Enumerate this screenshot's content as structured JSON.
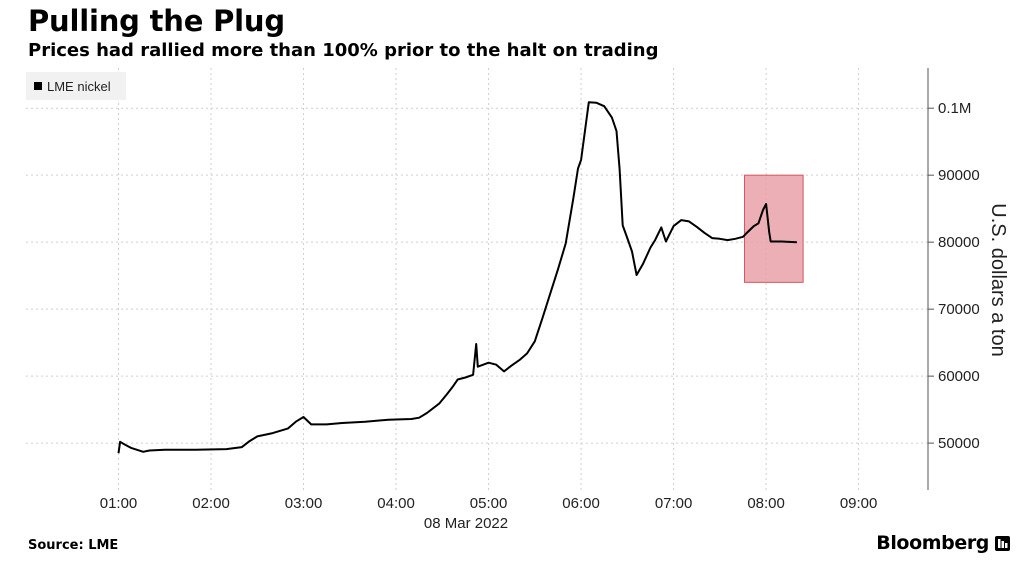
{
  "header": {
    "title": "Pulling the Plug",
    "subtitle": "Prices had rallied more than 100% prior to the halt on trading"
  },
  "footer": {
    "source": "Source: LME",
    "brand": "Bloomberg"
  },
  "icons": {
    "brand_icon": "bloomberg-terminal-icon"
  },
  "colors": {
    "line": "#000000",
    "grid": "#cfcfcf",
    "highlight": "#e8a1a8",
    "highlight_border": "#d9535f",
    "legend_bg": "#f1f1f1"
  },
  "chart_data": {
    "type": "line",
    "xlabel": "08 Mar 2022",
    "ylabel": "U.S. dollars a ton",
    "x_ticks": [
      "01:00",
      "02:00",
      "03:00",
      "04:00",
      "05:00",
      "06:00",
      "07:00",
      "08:00",
      "09:00"
    ],
    "y_ticks": [
      {
        "value": 50000,
        "label": "50000"
      },
      {
        "value": 60000,
        "label": "60000"
      },
      {
        "value": 70000,
        "label": "70000"
      },
      {
        "value": 80000,
        "label": "80000"
      },
      {
        "value": 90000,
        "label": "90000"
      },
      {
        "value": 100000,
        "label": "0.1M"
      }
    ],
    "xlim": [
      "00:00",
      "09:45"
    ],
    "ylim": [
      43000,
      106000
    ],
    "y_axis_side": "right",
    "grid": true,
    "legend_position": "top-left",
    "series": [
      {
        "name": "LME nickel",
        "points": [
          [
            "01:00",
            48500
          ],
          [
            "01:01",
            50200
          ],
          [
            "01:04",
            49800
          ],
          [
            "01:08",
            49300
          ],
          [
            "01:12",
            49000
          ],
          [
            "01:16",
            48700
          ],
          [
            "01:20",
            48900
          ],
          [
            "01:30",
            49000
          ],
          [
            "01:50",
            49000
          ],
          [
            "02:10",
            49100
          ],
          [
            "02:20",
            49400
          ],
          [
            "02:25",
            50300
          ],
          [
            "02:30",
            51000
          ],
          [
            "02:40",
            51500
          ],
          [
            "02:50",
            52200
          ],
          [
            "02:55",
            53200
          ],
          [
            "03:00",
            53900
          ],
          [
            "03:05",
            52800
          ],
          [
            "03:15",
            52800
          ],
          [
            "03:25",
            53000
          ],
          [
            "03:40",
            53200
          ],
          [
            "03:55",
            53500
          ],
          [
            "04:10",
            53600
          ],
          [
            "04:15",
            53800
          ],
          [
            "04:20",
            54500
          ],
          [
            "04:28",
            55900
          ],
          [
            "04:33",
            57300
          ],
          [
            "04:37",
            58500
          ],
          [
            "04:40",
            59500
          ],
          [
            "04:45",
            59800
          ],
          [
            "04:50",
            60200
          ],
          [
            "04:52",
            64800
          ],
          [
            "04:53",
            61400
          ],
          [
            "05:00",
            62000
          ],
          [
            "05:05",
            61700
          ],
          [
            "05:10",
            60700
          ],
          [
            "05:15",
            61600
          ],
          [
            "05:20",
            62400
          ],
          [
            "05:25",
            63400
          ],
          [
            "05:30",
            65200
          ],
          [
            "05:35",
            68700
          ],
          [
            "05:40",
            72300
          ],
          [
            "05:45",
            75900
          ],
          [
            "05:50",
            79800
          ],
          [
            "05:55",
            86600
          ],
          [
            "05:58",
            91000
          ],
          [
            "06:00",
            92300
          ],
          [
            "06:05",
            100900
          ],
          [
            "06:10",
            100800
          ],
          [
            "06:15",
            100300
          ],
          [
            "06:20",
            98600
          ],
          [
            "06:23",
            96600
          ],
          [
            "06:25",
            90900
          ],
          [
            "06:27",
            82500
          ],
          [
            "06:30",
            80600
          ],
          [
            "06:33",
            78600
          ],
          [
            "06:36",
            75100
          ],
          [
            "06:40",
            76700
          ],
          [
            "06:45",
            79200
          ],
          [
            "06:48",
            80300
          ],
          [
            "06:52",
            82200
          ],
          [
            "06:55",
            80100
          ],
          [
            "07:00",
            82400
          ],
          [
            "07:05",
            83300
          ],
          [
            "07:10",
            83100
          ],
          [
            "07:15",
            82300
          ],
          [
            "07:20",
            81400
          ],
          [
            "07:25",
            80600
          ],
          [
            "07:30",
            80500
          ],
          [
            "07:35",
            80300
          ],
          [
            "07:40",
            80500
          ],
          [
            "07:45",
            80800
          ],
          [
            "07:48",
            81500
          ],
          [
            "07:52",
            82400
          ],
          [
            "07:55",
            82800
          ],
          [
            "07:58",
            84800
          ],
          [
            "08:00",
            85700
          ],
          [
            "08:02",
            81500
          ],
          [
            "08:03",
            80100
          ],
          [
            "08:10",
            80100
          ],
          [
            "08:20",
            80000
          ]
        ]
      }
    ],
    "highlight": {
      "x": [
        "07:46",
        "08:24"
      ],
      "y": [
        74000,
        90000
      ]
    }
  }
}
